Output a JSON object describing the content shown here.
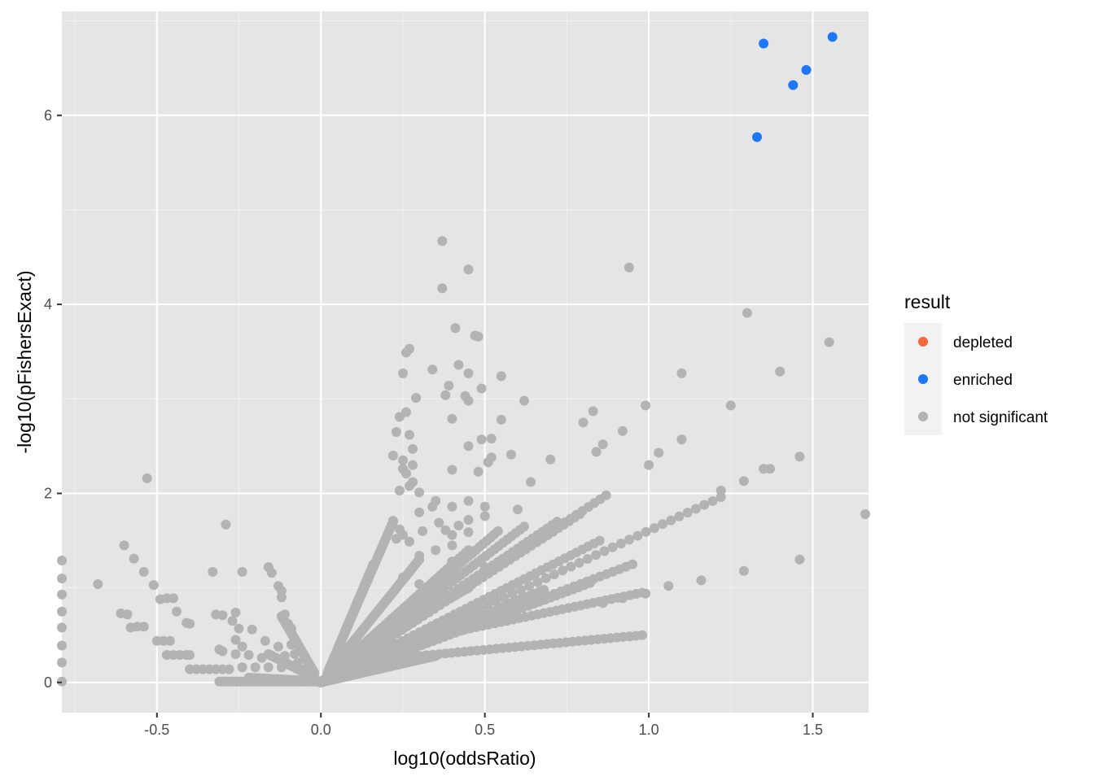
{
  "chart_data": {
    "type": "scatter",
    "title": "",
    "xlabel": "log10(oddsRatio)",
    "ylabel": "-log10(pFishersExact)",
    "xlim": [
      -0.79,
      1.67
    ],
    "ylim": [
      -0.32,
      7.1
    ],
    "x_ticks": [
      -0.5,
      0.0,
      0.5,
      1.0,
      1.5
    ],
    "x_tick_labels": [
      "-0.5",
      "0.0",
      "0.5",
      "1.0",
      "1.5"
    ],
    "y_ticks": [
      0,
      2,
      4,
      6
    ],
    "y_tick_labels": [
      "0",
      "2",
      "4",
      "6"
    ],
    "grid": true,
    "background": "#e5e5e5",
    "legend": {
      "title": "result",
      "placement": "right",
      "entries": [
        {
          "label": "depleted",
          "color": "#f8683f"
        },
        {
          "label": "enriched",
          "color": "#1e77f8"
        },
        {
          "label": "not significant",
          "color": "#b3b3b3"
        }
      ]
    },
    "series": [
      {
        "name": "enriched",
        "color": "#1e77f8",
        "points": [
          [
            1.35,
            6.76
          ],
          [
            1.56,
            6.83
          ],
          [
            1.48,
            6.48
          ],
          [
            1.44,
            6.32
          ],
          [
            1.33,
            5.77
          ]
        ]
      },
      {
        "name": "not significant",
        "color": "#b3b3b3",
        "points": [
          [
            0.37,
            4.67
          ],
          [
            0.37,
            4.17
          ],
          [
            0.45,
            4.37
          ],
          [
            0.94,
            4.39
          ],
          [
            1.3,
            3.91
          ],
          [
            0.41,
            3.75
          ],
          [
            0.47,
            3.67
          ],
          [
            0.48,
            3.66
          ],
          [
            1.55,
            3.6
          ],
          [
            0.26,
            3.49
          ],
          [
            0.27,
            3.53
          ],
          [
            0.42,
            3.36
          ],
          [
            0.25,
            3.27
          ],
          [
            0.34,
            3.31
          ],
          [
            0.45,
            3.27
          ],
          [
            0.55,
            3.24
          ],
          [
            1.1,
            3.27
          ],
          [
            1.4,
            3.29
          ],
          [
            0.39,
            3.14
          ],
          [
            0.49,
            3.11
          ],
          [
            0.38,
            3.04
          ],
          [
            0.44,
            3.03
          ],
          [
            0.29,
            3.01
          ],
          [
            0.45,
            2.98
          ],
          [
            0.62,
            2.98
          ],
          [
            0.99,
            2.93
          ],
          [
            1.25,
            2.93
          ],
          [
            0.26,
            2.86
          ],
          [
            0.4,
            2.79
          ],
          [
            0.55,
            2.78
          ],
          [
            0.24,
            2.81
          ],
          [
            0.8,
            2.75
          ],
          [
            0.83,
            2.87
          ],
          [
            0.92,
            2.66
          ],
          [
            0.23,
            2.65
          ],
          [
            0.27,
            2.62
          ],
          [
            0.52,
            2.58
          ],
          [
            1.1,
            2.57
          ],
          [
            0.49,
            2.57
          ],
          [
            0.45,
            2.5
          ],
          [
            0.28,
            2.47
          ],
          [
            0.86,
            2.52
          ],
          [
            0.84,
            2.44
          ],
          [
            0.22,
            2.4
          ],
          [
            0.25,
            2.35
          ],
          [
            0.52,
            2.38
          ],
          [
            0.51,
            2.33
          ],
          [
            0.58,
            2.41
          ],
          [
            0.7,
            2.36
          ],
          [
            1.03,
            2.43
          ],
          [
            1.0,
            2.3
          ],
          [
            1.46,
            2.39
          ],
          [
            0.28,
            2.3
          ],
          [
            0.25,
            2.26
          ],
          [
            0.4,
            2.25
          ],
          [
            0.26,
            2.21
          ],
          [
            0.48,
            2.23
          ],
          [
            1.37,
            2.26
          ],
          [
            1.35,
            2.26
          ],
          [
            0.27,
            2.08
          ],
          [
            0.28,
            2.12
          ],
          [
            0.64,
            2.12
          ],
          [
            0.3,
            2.01
          ],
          [
            0.24,
            2.03
          ],
          [
            1.22,
            2.03
          ],
          [
            1.29,
            2.13
          ],
          [
            -0.53,
            2.16
          ],
          [
            0.35,
            1.92
          ],
          [
            0.4,
            1.86
          ],
          [
            0.45,
            1.92
          ],
          [
            0.5,
            1.86
          ],
          [
            0.22,
            1.71
          ],
          [
            0.3,
            1.8
          ],
          [
            0.34,
            1.86
          ],
          [
            0.24,
            1.62
          ],
          [
            0.42,
            1.66
          ],
          [
            0.45,
            1.72
          ],
          [
            0.5,
            1.76
          ],
          [
            0.25,
            1.56
          ],
          [
            0.36,
            1.69
          ],
          [
            0.38,
            1.61
          ],
          [
            0.4,
            1.56
          ],
          [
            0.45,
            1.59
          ],
          [
            0.6,
            1.83
          ],
          [
            1.66,
            1.78
          ],
          [
            -0.29,
            1.67
          ],
          [
            0.23,
            1.52
          ],
          [
            0.27,
            1.49
          ],
          [
            0.31,
            1.6
          ],
          [
            0.35,
            1.4
          ],
          [
            0.4,
            1.45
          ],
          [
            0.45,
            1.34
          ],
          [
            -0.6,
            1.45
          ],
          [
            -0.57,
            1.31
          ],
          [
            -0.54,
            1.17
          ],
          [
            -0.51,
            1.03
          ],
          [
            0.3,
            1.34
          ],
          [
            0.4,
            1.28
          ],
          [
            0.5,
            1.22
          ],
          [
            1.46,
            1.3
          ],
          [
            -0.33,
            1.17
          ],
          [
            -0.24,
            1.17
          ],
          [
            -0.16,
            1.22
          ],
          [
            -0.15,
            1.16
          ],
          [
            -0.68,
            1.04
          ],
          [
            -0.13,
            1.02
          ],
          [
            -0.12,
            0.97
          ],
          [
            0.25,
            1.11
          ],
          [
            0.3,
            1.04
          ],
          [
            0.4,
            1.12
          ],
          [
            1.06,
            1.02
          ],
          [
            1.16,
            1.08
          ],
          [
            1.29,
            1.18
          ],
          [
            -0.49,
            0.88
          ],
          [
            -0.47,
            0.89
          ],
          [
            -0.45,
            0.89
          ],
          [
            -0.12,
            0.9
          ],
          [
            -0.61,
            0.73
          ],
          [
            -0.59,
            0.72
          ],
          [
            -0.44,
            0.75
          ],
          [
            -0.32,
            0.72
          ],
          [
            -0.3,
            0.71
          ],
          [
            -0.26,
            0.74
          ],
          [
            -0.11,
            0.72
          ],
          [
            0.63,
            0.87
          ],
          [
            0.99,
            0.94
          ],
          [
            0.92,
            0.89
          ],
          [
            0.86,
            0.84
          ],
          [
            -0.41,
            0.63
          ],
          [
            -0.4,
            0.62
          ],
          [
            -0.58,
            0.58
          ],
          [
            -0.56,
            0.59
          ],
          [
            -0.54,
            0.59
          ],
          [
            -0.27,
            0.65
          ],
          [
            -0.25,
            0.57
          ],
          [
            -0.21,
            0.56
          ],
          [
            -0.1,
            0.62
          ],
          [
            -0.09,
            0.57
          ],
          [
            -0.5,
            0.44
          ],
          [
            -0.48,
            0.44
          ],
          [
            -0.46,
            0.44
          ],
          [
            -0.26,
            0.45
          ],
          [
            -0.24,
            0.38
          ],
          [
            -0.17,
            0.44
          ],
          [
            -0.13,
            0.38
          ],
          [
            -0.09,
            0.4
          ],
          [
            -0.3,
            0.33
          ],
          [
            -0.31,
            0.35
          ],
          [
            -0.47,
            0.29
          ],
          [
            -0.45,
            0.29
          ],
          [
            -0.43,
            0.29
          ],
          [
            -0.41,
            0.29
          ],
          [
            -0.4,
            0.29
          ],
          [
            -0.26,
            0.3
          ],
          [
            -0.22,
            0.29
          ],
          [
            -0.18,
            0.26
          ],
          [
            -0.15,
            0.28
          ],
          [
            -0.11,
            0.28
          ],
          [
            -0.08,
            0.3
          ],
          [
            -0.07,
            0.21
          ],
          [
            -0.4,
            0.14
          ],
          [
            -0.38,
            0.14
          ],
          [
            -0.36,
            0.14
          ],
          [
            -0.34,
            0.14
          ],
          [
            -0.32,
            0.14
          ],
          [
            -0.3,
            0.14
          ],
          [
            -0.28,
            0.14
          ],
          [
            -0.24,
            0.16
          ],
          [
            -0.2,
            0.16
          ],
          [
            -0.16,
            0.16
          ],
          [
            -0.12,
            0.16
          ],
          [
            -0.08,
            0.16
          ],
          [
            -0.05,
            0.14
          ],
          [
            -0.79,
            1.29
          ],
          [
            -0.79,
            1.1
          ],
          [
            -0.79,
            0.93
          ],
          [
            -0.79,
            0.75
          ],
          [
            -0.79,
            0.58
          ],
          [
            -0.79,
            0.39
          ],
          [
            -0.79,
            0.21
          ],
          [
            -0.79,
            0.01
          ],
          [
            0.06,
            0.2
          ],
          [
            0.1,
            0.16
          ],
          [
            0.14,
            0.19
          ],
          [
            0.17,
            0.2
          ],
          [
            0.04,
            0.11
          ],
          [
            0.08,
            0.12
          ],
          [
            0.13,
            0.12
          ],
          [
            0.12,
            0.1
          ],
          [
            0.16,
            0.18
          ]
        ]
      }
    ]
  }
}
